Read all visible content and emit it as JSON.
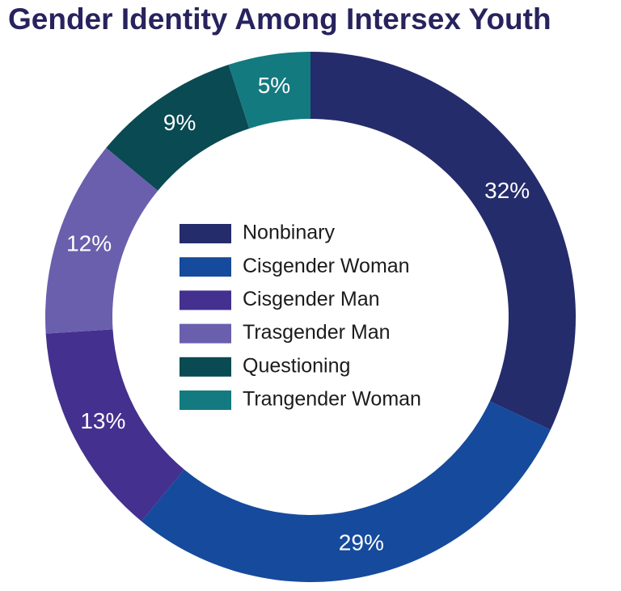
{
  "chart_data": {
    "type": "donut",
    "title": "Gender Identity Among Intersex Youth",
    "categories": [
      "Nonbinary",
      "Cisgender Woman",
      "Cisgender Man",
      "Trasgender Man",
      "Questioning",
      "Trangender Woman"
    ],
    "values": [
      32,
      29,
      13,
      12,
      9,
      5
    ],
    "value_labels": [
      "32%",
      "29%",
      "13%",
      "12%",
      "9%",
      "5%"
    ],
    "colors": [
      "#252c6b",
      "#164a9c",
      "#44308f",
      "#6a5fad",
      "#0a4a52",
      "#137a80"
    ]
  }
}
